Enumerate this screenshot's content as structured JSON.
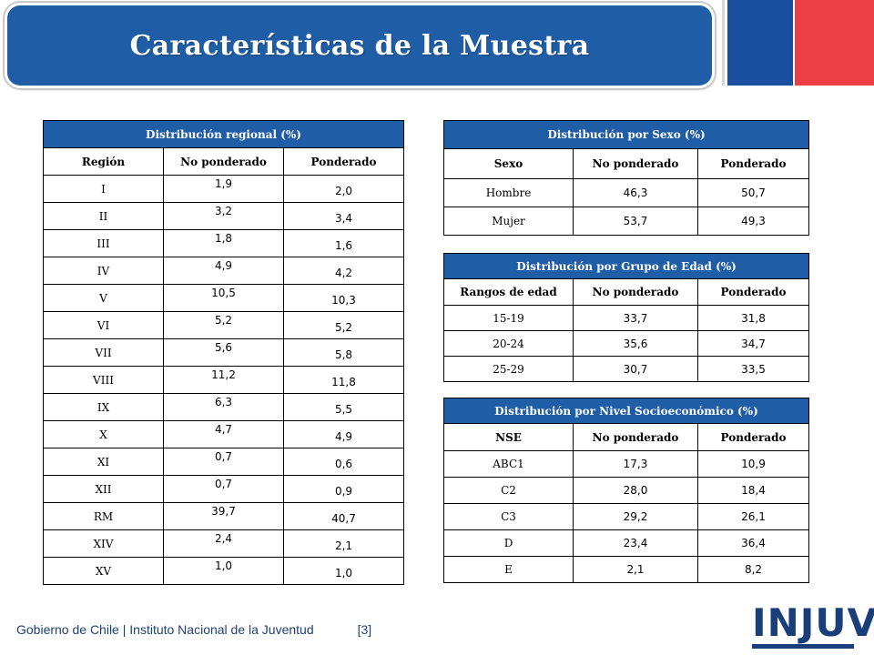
{
  "title": "Características de la Muestra",
  "regional": {
    "title": "Distribución regional (%)",
    "headers": [
      "Región",
      "No ponderado",
      "Ponderado"
    ],
    "rows": [
      [
        "I",
        "1,9",
        "2,0"
      ],
      [
        "II",
        "3,2",
        "3,4"
      ],
      [
        "III",
        "1,8",
        "1,6"
      ],
      [
        "IV",
        "4,9",
        "4,2"
      ],
      [
        "V",
        "10,5",
        "10,3"
      ],
      [
        "VI",
        "5,2",
        "5,2"
      ],
      [
        "VII",
        "5,6",
        "5,8"
      ],
      [
        "VIII",
        "11,2",
        "11,8"
      ],
      [
        "IX",
        "6,3",
        "5,5"
      ],
      [
        "X",
        "4,7",
        "4,9"
      ],
      [
        "XI",
        "0,7",
        "0,6"
      ],
      [
        "XII",
        "0,7",
        "0,9"
      ],
      [
        "RM",
        "39,7",
        "40,7"
      ],
      [
        "XIV",
        "2,4",
        "2,1"
      ],
      [
        "XV",
        "1,0",
        "1,0"
      ]
    ]
  },
  "sexo": {
    "title": "Distribución por Sexo (%)",
    "headers": [
      "Sexo",
      "No ponderado",
      "Ponderado"
    ],
    "rows": [
      [
        "Hombre",
        "46,3",
        "50,7"
      ],
      [
        "Mujer",
        "53,7",
        "49,3"
      ]
    ]
  },
  "edad": {
    "title": "Distribución por Grupo de Edad (%)",
    "headers": [
      "Rangos de edad",
      "No ponderado",
      "Ponderado"
    ],
    "rows": [
      [
        "15-19",
        "33,7",
        "31,8"
      ],
      [
        "20-24",
        "35,6",
        "34,7"
      ],
      [
        "25-29",
        "30,7",
        "33,5"
      ]
    ]
  },
  "nse": {
    "title": "Distribución por Nivel Socioeconómico (%)",
    "headers": [
      "NSE",
      "No ponderado",
      "Ponderado"
    ],
    "rows": [
      [
        "ABC1",
        "17,3",
        "10,9"
      ],
      [
        "C2",
        "28,0",
        "18,4"
      ],
      [
        "C3",
        "29,2",
        "26,1"
      ],
      [
        "D",
        "23,4",
        "36,4"
      ],
      [
        "E",
        "2,1",
        "8,2"
      ]
    ]
  },
  "footer": {
    "text": "Gobierno de Chile | Instituto Nacional de la Juventud",
    "page": "[3]"
  },
  "logo_text": "INJUV",
  "colors": {
    "header_blue": "#1f5ea6",
    "flag_blue": "#1a4fa0",
    "flag_red": "#ee3e45"
  }
}
